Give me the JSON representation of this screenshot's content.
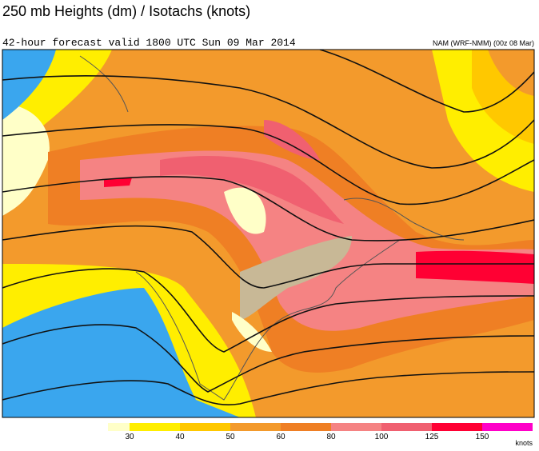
{
  "header": {
    "title": "250 mb Heights (dm) / Isotachs (knots)",
    "subtitle": "42-hour forecast valid 1800 UTC Sun 09 Mar 2014",
    "model": "NAM (WRF-NMM) (00z 08 Mar)"
  },
  "colorbar": {
    "ticks": [
      30,
      40,
      50,
      60,
      80,
      100,
      125,
      150
    ],
    "units": "knots"
  }
}
